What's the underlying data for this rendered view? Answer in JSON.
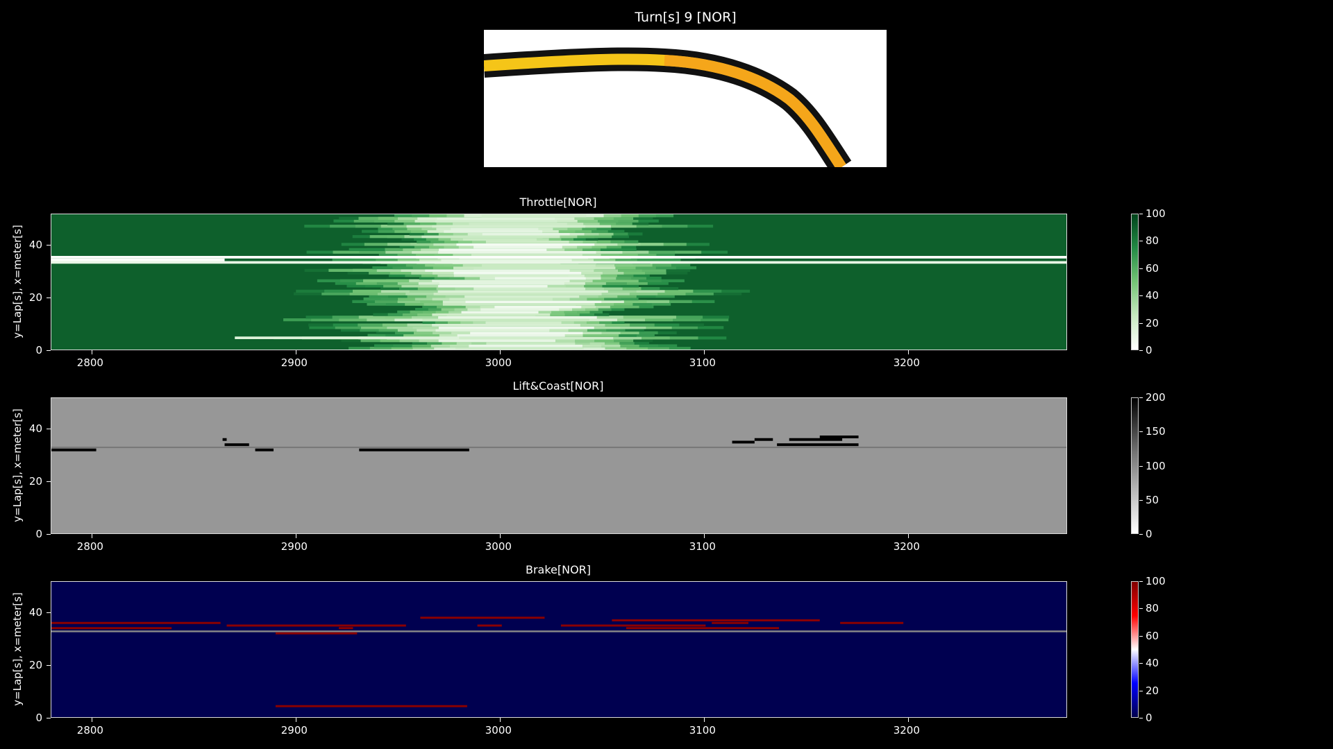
{
  "figure_title": "Turn[s] 9 [NOR]",
  "colors": {
    "background": "#000000",
    "throttle_low": "#ffffff",
    "throttle_high": "#00441b",
    "liftcoast_bg": "#979797",
    "brake_bg": "#000050",
    "brake_mark": "#8b0000",
    "track_racing_line": "#f5c518",
    "track_edge": "#111111"
  },
  "chart_data": [
    {
      "type": "heatmap",
      "title": "Throttle[NOR]",
      "ylabel": "y=Lap[s], x=meter[s]",
      "xlim": [
        2780,
        3278
      ],
      "ylim": [
        0,
        52
      ],
      "xticks": [
        2800,
        2900,
        3000,
        3100,
        3200
      ],
      "yticks": [
        0,
        20,
        40
      ],
      "colorbar": {
        "range": [
          0,
          100
        ],
        "ticks": [
          0,
          20,
          40,
          60,
          80,
          100
        ],
        "cmap": "Greens"
      },
      "background_value": 90,
      "features": [
        {
          "lap": 33,
          "x_start": 2780,
          "x_end": 3278,
          "value": 10
        },
        {
          "lap": 35,
          "x_start": 2780,
          "x_end": 3278,
          "value": 2
        },
        {
          "lap": 34,
          "x_start": 2780,
          "x_end": 2865,
          "value": 2
        },
        {
          "lap": 4,
          "x_start": 2870,
          "x_end": 2980,
          "value": 15
        }
      ],
      "lift_zone_center": 3010,
      "lift_zone_halfwidth": 60
    },
    {
      "type": "heatmap",
      "title": "Lift&Coast[NOR]",
      "ylabel": "y=Lap[s], x=meter[s]",
      "xlim": [
        2780,
        3278
      ],
      "ylim": [
        0,
        52
      ],
      "xticks": [
        2800,
        2900,
        3000,
        3100,
        3200
      ],
      "yticks": [
        0,
        20,
        40
      ],
      "colorbar": {
        "range": [
          0,
          200
        ],
        "ticks": [
          0,
          50,
          100,
          150,
          200
        ],
        "cmap": "Greys"
      },
      "background_value": 100,
      "segments": [
        {
          "lap": 32,
          "x_start": 2780,
          "x_end": 2802
        },
        {
          "lap": 36,
          "x_start": 2864,
          "x_end": 2866
        },
        {
          "lap": 34,
          "x_start": 2865,
          "x_end": 2877
        },
        {
          "lap": 32,
          "x_start": 2880,
          "x_end": 2889
        },
        {
          "lap": 32,
          "x_start": 2931,
          "x_end": 2985
        },
        {
          "lap": 35,
          "x_start": 3114,
          "x_end": 3125
        },
        {
          "lap": 36,
          "x_start": 3125,
          "x_end": 3134
        },
        {
          "lap": 34,
          "x_start": 3136,
          "x_end": 3176
        },
        {
          "lap": 36,
          "x_start": 3142,
          "x_end": 3168
        },
        {
          "lap": 37,
          "x_start": 3157,
          "x_end": 3176
        }
      ]
    },
    {
      "type": "heatmap",
      "title": "Brake[NOR]",
      "ylabel": "y=Lap[s], x=meter[s]",
      "xlim": [
        2780,
        3278
      ],
      "ylim": [
        0,
        52
      ],
      "xticks": [
        2800,
        2900,
        3000,
        3100,
        3200
      ],
      "yticks": [
        0,
        20,
        40
      ],
      "colorbar": {
        "range": [
          0,
          100
        ],
        "ticks": [
          0,
          20,
          40,
          60,
          80,
          100
        ],
        "cmap": "seismic"
      },
      "background_value": 0,
      "segments": [
        {
          "lap": 36,
          "x_start": 2780,
          "x_end": 2863
        },
        {
          "lap": 34,
          "x_start": 2780,
          "x_end": 2839
        },
        {
          "lap": 35,
          "x_start": 2866,
          "x_end": 2954
        },
        {
          "lap": 34,
          "x_start": 2921,
          "x_end": 2928
        },
        {
          "lap": 32,
          "x_start": 2890,
          "x_end": 2930
        },
        {
          "lap": 38,
          "x_start": 2961,
          "x_end": 3022
        },
        {
          "lap": 35,
          "x_start": 2989,
          "x_end": 3001
        },
        {
          "lap": 35,
          "x_start": 3030,
          "x_end": 3076
        },
        {
          "lap": 37,
          "x_start": 3055,
          "x_end": 3157
        },
        {
          "lap": 35,
          "x_start": 3060,
          "x_end": 3101
        },
        {
          "lap": 34,
          "x_start": 3062,
          "x_end": 3137
        },
        {
          "lap": 36,
          "x_start": 3104,
          "x_end": 3122
        },
        {
          "lap": 36,
          "x_start": 3167,
          "x_end": 3198
        },
        {
          "lap": 4,
          "x_start": 2890,
          "x_end": 2984
        }
      ]
    }
  ]
}
